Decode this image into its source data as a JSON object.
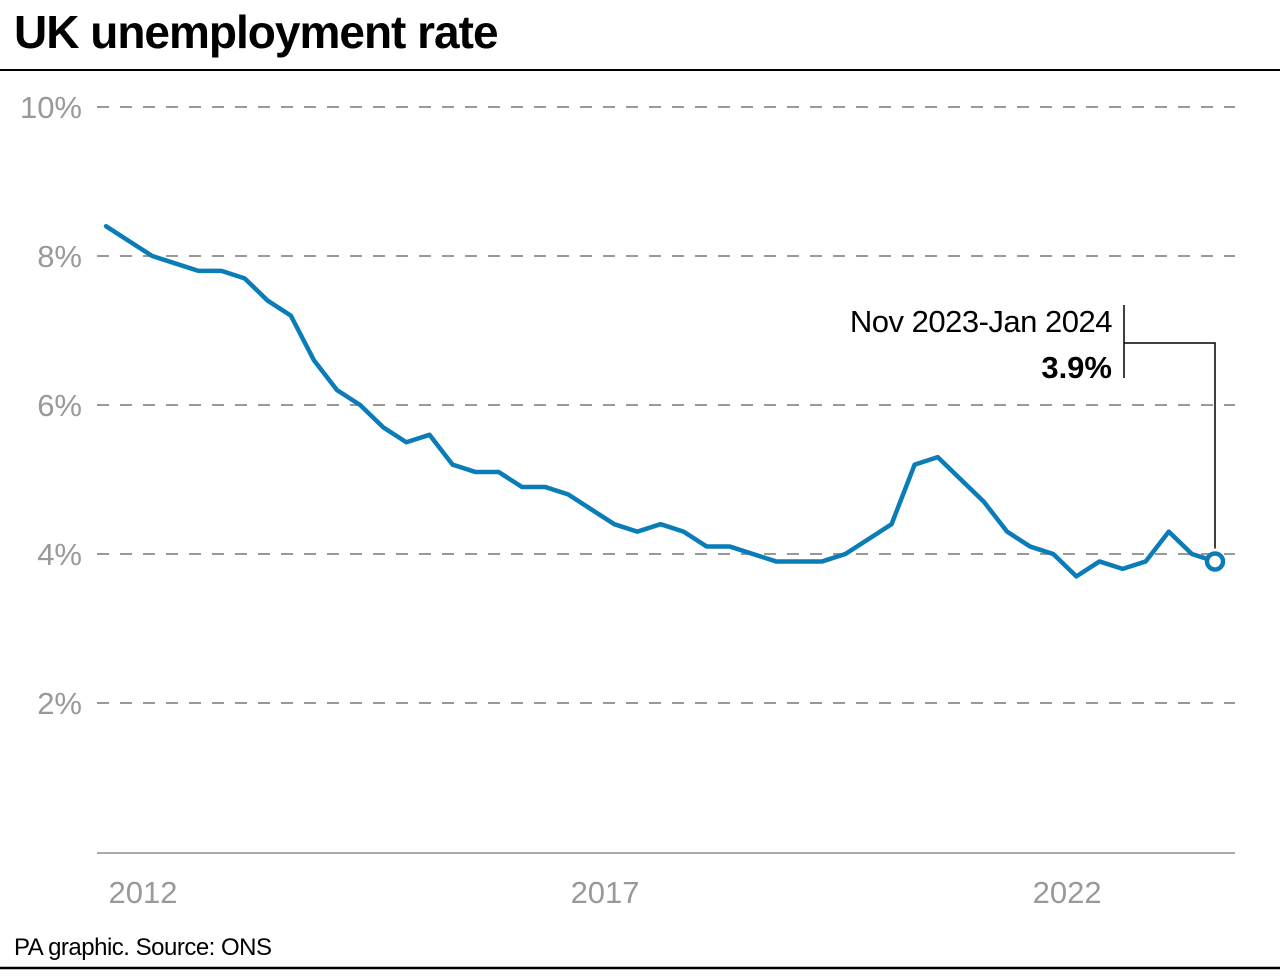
{
  "chart_data": {
    "type": "line",
    "title": "UK unemployment rate",
    "xlabel": "",
    "ylabel": "",
    "ylim": [
      0,
      10
    ],
    "yticks": [
      2,
      4,
      6,
      8,
      10
    ],
    "ytick_labels": [
      "2%",
      "4%",
      "6%",
      "8%",
      "10%"
    ],
    "xticks": [
      2012,
      2017,
      2022
    ],
    "xtick_labels": [
      "2012",
      "2017",
      "2022"
    ],
    "grid": true,
    "x_start": 2012.0,
    "x_step_years": 0.25,
    "values": [
      8.4,
      8.2,
      8.0,
      7.9,
      7.8,
      7.8,
      7.7,
      7.4,
      7.2,
      6.6,
      6.2,
      6.0,
      5.7,
      5.5,
      5.6,
      5.2,
      5.1,
      5.1,
      4.9,
      4.9,
      4.8,
      4.6,
      4.4,
      4.3,
      4.4,
      4.3,
      4.1,
      4.1,
      4.0,
      3.9,
      3.9,
      3.9,
      4.0,
      4.2,
      4.4,
      5.2,
      5.3,
      5.0,
      4.7,
      4.3,
      4.1,
      4.0,
      3.7,
      3.9,
      3.8,
      3.9,
      4.3,
      4.0,
      3.9
    ],
    "line_color": "#0a7db8",
    "annotation": {
      "label": "Nov 2023-Jan 2024",
      "value": "3.9%"
    },
    "source": "PA graphic. Source: ONS"
  }
}
